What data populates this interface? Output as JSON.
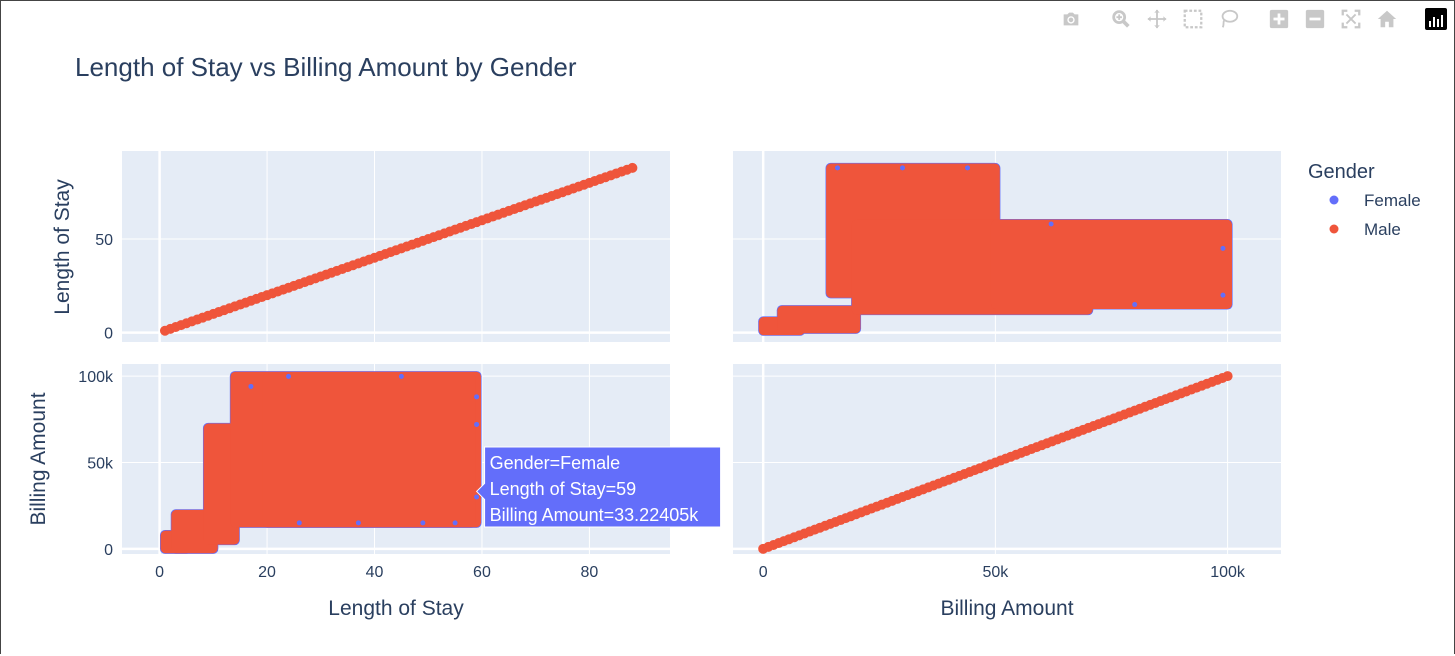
{
  "chart_data": {
    "type": "scatter",
    "subtype": "scatter_matrix",
    "title": "Length of Stay vs Billing Amount by Gender",
    "dimensions": [
      "Length of Stay",
      "Billing Amount"
    ],
    "legend": {
      "title": "Gender",
      "placement": "top-right",
      "entries": [
        {
          "name": "Female",
          "color": "#636efa"
        },
        {
          "name": "Male",
          "color": "#ef553b"
        }
      ]
    },
    "axes": {
      "los": {
        "label": "Length of Stay",
        "range": [
          -7,
          95
        ],
        "ticks": [
          0,
          20,
          40,
          60,
          80
        ],
        "tick_labels": [
          "0",
          "20",
          "40",
          "60",
          "80"
        ]
      },
      "los_y": {
        "label": "Length of Stay",
        "range": [
          -5,
          97
        ],
        "ticks": [
          0,
          50
        ],
        "tick_labels": [
          "0",
          "50"
        ]
      },
      "bill": {
        "label": "Billing Amount",
        "range": [
          -6500,
          111500
        ],
        "ticks": [
          0,
          50000,
          100000
        ],
        "tick_labels": [
          "0",
          "50k",
          "100k"
        ]
      },
      "bill_y": {
        "label": "Billing Amount",
        "range": [
          -3000,
          107000
        ],
        "ticks": [
          0,
          50000,
          100000
        ],
        "tick_labels": [
          "0",
          "50k",
          "100k"
        ]
      }
    },
    "panels": {
      "top_left": {
        "x": "Length of Stay",
        "y": "Length of Stay",
        "relation": "identity",
        "x_range": [
          1,
          88
        ]
      },
      "bottom_right": {
        "x": "Billing Amount",
        "y": "Billing Amount",
        "relation": "identity",
        "x_range": [
          0,
          100000
        ]
      },
      "top_right_blocks": [
        {
          "x": [
            0,
            8000
          ],
          "y": [
            1,
            6
          ]
        },
        {
          "x": [
            4000,
            20000
          ],
          "y": [
            2,
            12
          ]
        },
        {
          "x": [
            14500,
            50000
          ],
          "y": [
            21,
            88
          ]
        },
        {
          "x": [
            20000,
            70000
          ],
          "y": [
            12,
            58
          ]
        },
        {
          "x": [
            50000,
            100000
          ],
          "y": [
            15,
            58
          ]
        }
      ],
      "bottom_left_blocks": [
        {
          "x": [
            1,
            5
          ],
          "y": [
            0,
            8000
          ]
        },
        {
          "x": [
            3,
            10
          ],
          "y": [
            0,
            20000
          ]
        },
        {
          "x": [
            9,
            14
          ],
          "y": [
            5000,
            70000
          ]
        },
        {
          "x": [
            14,
            59
          ],
          "y": [
            15000,
            100000
          ]
        },
        {
          "x": [
            20,
            58
          ],
          "y": [
            15000,
            99000
          ]
        }
      ],
      "female_edge_points": [
        {
          "x": 26,
          "y": 15000
        },
        {
          "x": 37,
          "y": 15000
        },
        {
          "x": 49,
          "y": 15000
        },
        {
          "x": 55,
          "y": 15000
        },
        {
          "x": 24,
          "y": 99800
        },
        {
          "x": 45,
          "y": 99800
        },
        {
          "x": 59,
          "y": 30000
        },
        {
          "x": 59,
          "y": 72000
        },
        {
          "x": 17,
          "y": 94000
        },
        {
          "x": 59,
          "y": 88000
        }
      ],
      "female_edge_points_tr": [
        {
          "x": 16000,
          "y": 88
        },
        {
          "x": 30000,
          "y": 88
        },
        {
          "x": 44000,
          "y": 88
        },
        {
          "x": 99000,
          "y": 20
        },
        {
          "x": 99000,
          "y": 45
        },
        {
          "x": 80000,
          "y": 15
        },
        {
          "x": 62000,
          "y": 58
        }
      ]
    },
    "hover": {
      "lines": [
        "Gender=Female",
        "Length of Stay=59",
        "Billing Amount=33.22405k"
      ],
      "point": {
        "x": 59,
        "y": 33224.05
      }
    }
  },
  "modebar": {
    "buttons": [
      "camera-icon",
      "zoom-icon",
      "pan-icon",
      "box-select-icon",
      "lasso-icon",
      "zoom-in-icon",
      "zoom-out-icon",
      "autoscale-icon",
      "reset-axes-icon",
      "plotly-logo-icon"
    ]
  }
}
